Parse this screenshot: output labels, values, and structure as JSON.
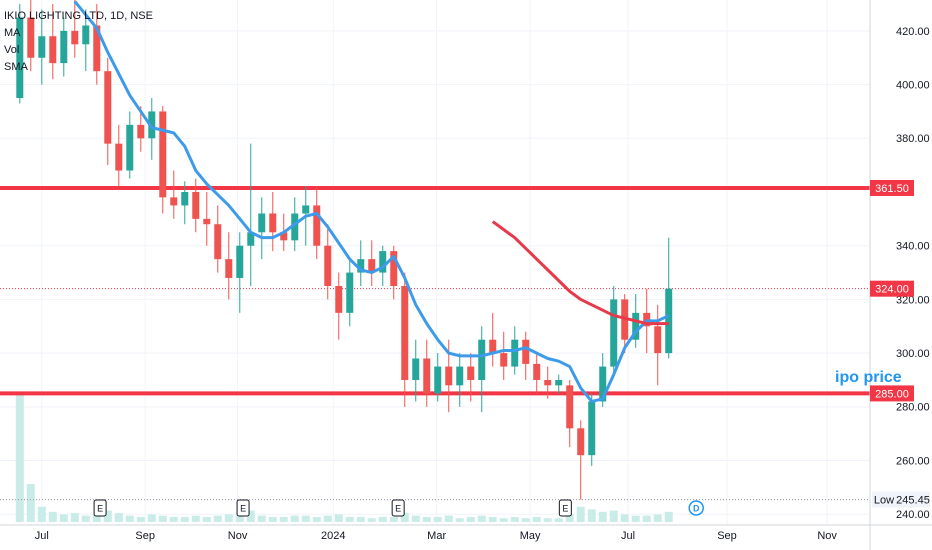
{
  "chart_data": {
    "type": "candlestick",
    "title": "IKIO LIGHTING LTD, 1D, NSE",
    "indicators": [
      "MA",
      "Vol",
      "SMA"
    ],
    "ylim": [
      236,
      431.5
    ],
    "yticks": [
      {
        "value": 240,
        "label": "240.00"
      },
      {
        "value": 260,
        "label": "260.00"
      },
      {
        "value": 280,
        "label": "280.00"
      },
      {
        "value": 300,
        "label": "300.00"
      },
      {
        "value": 320,
        "label": "320.00"
      },
      {
        "value": 340,
        "label": "340.00"
      },
      {
        "value": 380,
        "label": "380.00"
      },
      {
        "value": 400,
        "label": "400.00"
      },
      {
        "value": 420,
        "label": "420.00"
      }
    ],
    "xlim": [
      -1.8,
      77.3
    ],
    "xticks": [
      {
        "value": 2,
        "label": "Jul"
      },
      {
        "value": 11.4,
        "label": "Sep"
      },
      {
        "value": 19.8,
        "label": "Nov"
      },
      {
        "value": 28.5,
        "label": "2024"
      },
      {
        "value": 37.9,
        "label": "Mar"
      },
      {
        "value": 46.4,
        "label": "May"
      },
      {
        "value": 55.3,
        "label": "Jul"
      },
      {
        "value": 64.3,
        "label": "Sep"
      },
      {
        "value": 73.4,
        "label": "Nov"
      }
    ],
    "up_color": "#26a69a",
    "down_color": "#ef5350",
    "open": [
      395,
      425,
      410,
      418,
      408,
      420,
      415,
      422,
      405,
      378,
      368,
      385,
      380,
      390,
      358,
      355,
      360,
      350,
      348,
      335,
      328,
      340,
      345,
      352,
      345,
      342,
      352,
      355,
      340,
      325,
      315,
      330,
      335,
      330,
      338,
      325,
      290,
      298,
      285,
      295,
      288,
      295,
      290,
      305,
      300,
      295,
      305,
      296,
      290,
      288,
      288,
      272,
      262,
      282,
      295,
      320,
      305,
      315,
      310,
      300
    ],
    "high": [
      430,
      432,
      428,
      430,
      425,
      432,
      428,
      430,
      410,
      385,
      390,
      392,
      395,
      392,
      368,
      364,
      365,
      360,
      355,
      345,
      345,
      378,
      358,
      360,
      352,
      358,
      362,
      362,
      348,
      330,
      335,
      342,
      342,
      340,
      340,
      330,
      305,
      305,
      300,
      305,
      300,
      300,
      310,
      315,
      308,
      310,
      308,
      300,
      295,
      292,
      290,
      275,
      285,
      300,
      325,
      322,
      322,
      324,
      318,
      343
    ],
    "low": [
      393,
      405,
      400,
      402,
      403,
      410,
      405,
      400,
      370,
      362,
      365,
      375,
      372,
      352,
      350,
      348,
      345,
      340,
      330,
      320,
      315,
      325,
      335,
      338,
      338,
      338,
      340,
      335,
      320,
      305,
      310,
      325,
      325,
      325,
      320,
      280,
      282,
      280,
      282,
      278,
      280,
      282,
      278,
      295,
      290,
      292,
      290,
      285,
      283,
      285,
      265,
      245.45,
      258,
      280,
      292,
      300,
      302,
      300,
      288,
      298
    ],
    "close": [
      425,
      410,
      418,
      408,
      420,
      415,
      422,
      405,
      378,
      368,
      385,
      380,
      390,
      358,
      355,
      360,
      350,
      348,
      335,
      328,
      340,
      345,
      352,
      345,
      342,
      352,
      355,
      340,
      325,
      315,
      330,
      335,
      330,
      338,
      325,
      290,
      298,
      285,
      295,
      288,
      295,
      290,
      305,
      300,
      295,
      305,
      296,
      290,
      288,
      290,
      272,
      262,
      282,
      295,
      320,
      305,
      315,
      310,
      300,
      324
    ],
    "volume": [
      100,
      30,
      12,
      8,
      6,
      7,
      5,
      6,
      9,
      7,
      5,
      4,
      6,
      5,
      4,
      4,
      5,
      4,
      5,
      6,
      5,
      9,
      5,
      4,
      4,
      5,
      5,
      4,
      5,
      6,
      4,
      4,
      3,
      4,
      4,
      7,
      5,
      4,
      4,
      5,
      3,
      4,
      5,
      4,
      3,
      4,
      3,
      4,
      3,
      3,
      6,
      12,
      10,
      8,
      9,
      6,
      5,
      5,
      6,
      8
    ],
    "volume_color": "#c9ece8",
    "series": [
      {
        "name": "SMA",
        "color": "#3d9be9",
        "values": [
          null,
          null,
          null,
          null,
          null,
          431,
          426,
          421,
          412,
          404,
          396,
          390,
          384,
          383,
          382,
          377,
          368,
          363,
          359,
          355,
          350,
          345,
          343,
          343,
          345,
          348,
          351,
          352,
          347,
          341,
          335,
          331,
          330,
          332,
          336,
          328,
          318,
          311,
          305,
          300,
          299,
          299,
          299,
          300,
          301,
          301,
          302,
          300,
          298,
          297,
          295,
          287,
          282,
          283,
          292,
          302,
          308,
          312,
          312,
          314
        ]
      },
      {
        "name": "MA",
        "color": "#e8394a",
        "values": [
          null,
          null,
          null,
          null,
          null,
          null,
          null,
          null,
          null,
          null,
          null,
          null,
          null,
          null,
          null,
          null,
          null,
          null,
          null,
          null,
          null,
          null,
          null,
          null,
          null,
          null,
          null,
          null,
          null,
          null,
          null,
          null,
          null,
          null,
          null,
          null,
          null,
          null,
          null,
          null,
          null,
          null,
          null,
          349,
          346,
          343,
          339,
          335,
          331,
          327,
          323,
          320,
          318,
          316,
          314,
          313,
          312,
          311,
          311,
          311
        ]
      }
    ],
    "hlines": [
      {
        "value": 361.5,
        "label": "361.50",
        "color": "#f23645"
      },
      {
        "value": 285,
        "label": "285.00",
        "color": "#f23645"
      }
    ],
    "last": {
      "value": 324,
      "label": "324.00",
      "color": "#f23645"
    },
    "low_marker": {
      "name": "Low",
      "value": 245.45,
      "label": "245.45"
    },
    "annotation": {
      "text": "ipo price",
      "color": "#2196f3"
    },
    "events": [
      {
        "label": "E",
        "x": 7.3
      },
      {
        "label": "E",
        "x": 20.3
      },
      {
        "label": "E",
        "x": 34.4
      },
      {
        "label": "E",
        "x": 49.6
      },
      {
        "label": "D",
        "x": 61.5
      }
    ]
  }
}
